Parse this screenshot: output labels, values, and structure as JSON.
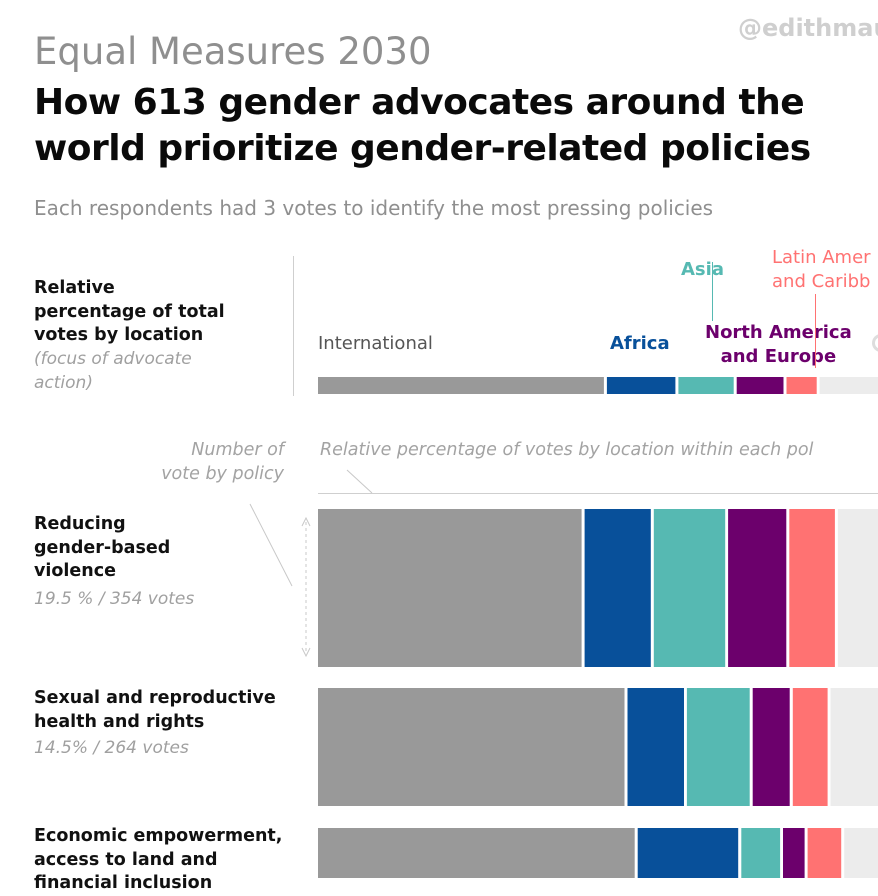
{
  "handle": "@edithmau",
  "supertitle": "Equal Measures 2030",
  "title_line1": "How 613 gender advocates around the",
  "title_line2": "world prioritize gender-related policies",
  "subtitle": "Each respondents had 3 votes to identify the most pressing policies",
  "location_header": {
    "line1": "Relative",
    "line2": "percentage of total",
    "line3": "votes by location",
    "note_line1": "(focus of advocate",
    "note_line2": "action)"
  },
  "notes": {
    "votes_line1": "Number of",
    "votes_line2": "vote by policy",
    "within": "Relative percentage of votes by location within each pol"
  },
  "location_labels": {
    "international": "International",
    "africa": "Africa",
    "asia": "Asia",
    "nae_line1": "North America",
    "nae_line2": "and Europe",
    "lac_line1": "Latin Amer",
    "lac_line2": "and Caribb"
  },
  "colors": {
    "International": "#999999",
    "Africa": "#08509a",
    "Asia": "#56b9b2",
    "North America and Europe": "#6c006c",
    "Latin America and Caribbean": "#ff7272",
    "Other": "#ececec"
  },
  "chart_data": [
    {
      "type": "bar",
      "orientation": "horizontal-stacked",
      "categories": [
        "Total votes by location"
      ],
      "series": [
        {
          "name": "International",
          "values": [
            50.5
          ]
        },
        {
          "name": "Africa",
          "values": [
            12.5
          ]
        },
        {
          "name": "Asia",
          "values": [
            10.2
          ]
        },
        {
          "name": "North America and Europe",
          "values": [
            8.7
          ]
        },
        {
          "name": "Latin America and Caribbean",
          "values": [
            5.8
          ]
        },
        {
          "name": "",
          "values": [
            12.3
          ]
        }
      ],
      "unit": "percent"
    },
    {
      "type": "bar",
      "orientation": "horizontal-stacked",
      "categories": [
        "Reducing gender-based violence",
        "Sexual and reproductive health and rights",
        "Economic empowerment, access to land and financial inclusion"
      ],
      "stats": [
        "19.5 % / 354 votes",
        "14.5% / 264 votes",
        ""
      ],
      "votes": [
        354,
        264,
        null
      ],
      "series": [
        {
          "name": "International",
          "values": [
            46.6,
            54.1,
            55.9
          ]
        },
        {
          "name": "Africa",
          "values": [
            12.1,
            10.4,
            18.1
          ]
        },
        {
          "name": "Asia",
          "values": [
            13.0,
            11.5,
            7.3
          ]
        },
        {
          "name": "North America and Europe",
          "values": [
            10.7,
            7.0,
            4.3
          ]
        },
        {
          "name": "Latin America and Caribbean",
          "values": [
            8.5,
            6.6,
            6.4
          ]
        },
        {
          "name": "",
          "values": [
            9.1,
            10.4,
            8.0
          ]
        }
      ],
      "unit": "percent"
    }
  ],
  "policies": [
    {
      "line1": "Reducing",
      "line2": "gender-based",
      "line3": "violence",
      "stat": "19.5 % / 354 votes"
    },
    {
      "line1": "Sexual and reproductive",
      "line2": "health and rights",
      "line3": "",
      "stat": "14.5% / 264 votes"
    },
    {
      "line1": "Economic empowerment,",
      "line2": "access to land and",
      "line3": "financial inclusion",
      "stat": ""
    }
  ]
}
